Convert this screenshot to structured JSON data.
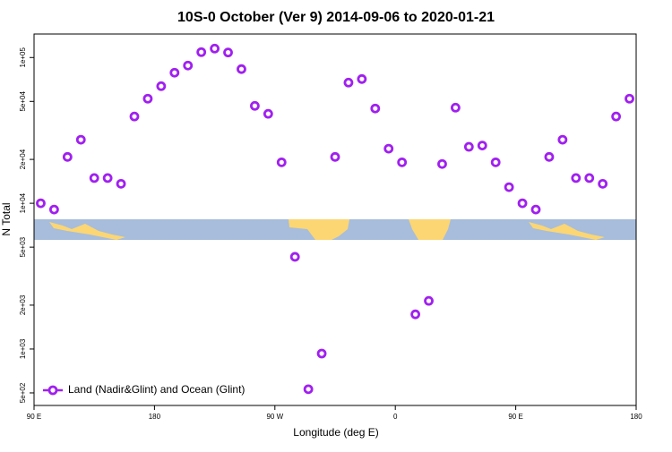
{
  "chart_data": {
    "type": "scatter",
    "title": "10S-0 October (Ver 9)   2014-09-06 to 2020-01-21",
    "x_label": "Longitude (deg E)",
    "y_label": "N Total",
    "log_y": true,
    "legend_position": "bottom-left",
    "xlim": [
      90,
      540
    ],
    "ylim": [
      410,
      145000
    ],
    "xticks": [
      {
        "value": 90,
        "label": "90 E"
      },
      180,
      {
        "value": 270,
        "label": "90 W"
      },
      {
        "value": 360,
        "label": "0"
      },
      {
        "value": 450,
        "label": "90 E"
      },
      {
        "value": 540,
        "label": "180"
      }
    ],
    "yticks": [
      {
        "value": 500,
        "label": "5e+02"
      },
      {
        "value": 1000,
        "label": "1e+03"
      },
      {
        "value": 2000,
        "label": "2e+03"
      },
      {
        "value": 5000,
        "label": "5e+03"
      },
      {
        "value": 10000,
        "label": "1e+04"
      },
      {
        "value": 20000,
        "label": "2e+04"
      },
      {
        "value": 50000,
        "label": "5e+04"
      },
      {
        "value": 100000,
        "label": "1e+05"
      }
    ],
    "series": [
      {
        "name": "Land (Nadir&Glint) and Ocean (Glint)",
        "color": "#a020f0",
        "x": [
          95,
          105,
          115,
          125,
          135,
          145,
          155,
          165,
          175,
          185,
          195,
          205,
          215,
          225,
          235,
          245,
          255,
          265,
          275,
          285,
          295,
          305,
          315,
          325,
          335,
          345,
          355,
          365,
          375,
          385,
          395,
          405,
          415,
          425,
          435,
          445,
          455,
          465,
          475,
          485,
          495,
          505,
          515,
          525,
          535
        ],
        "values": [
          10000,
          9060,
          20800,
          27300,
          14900,
          14900,
          13600,
          39400,
          52200,
          63600,
          78700,
          88100,
          108900,
          115200,
          108300,
          83300,
          46600,
          41100,
          19100,
          4290,
          530,
          931,
          20800,
          67300,
          71200,
          44700,
          23700,
          19100,
          1730,
          2140,
          18600,
          45300,
          24400,
          24900,
          19100,
          12900,
          10000,
          9060,
          20800,
          27300,
          14900,
          14900,
          13600,
          39400,
          52200
        ]
      }
    ]
  }
}
